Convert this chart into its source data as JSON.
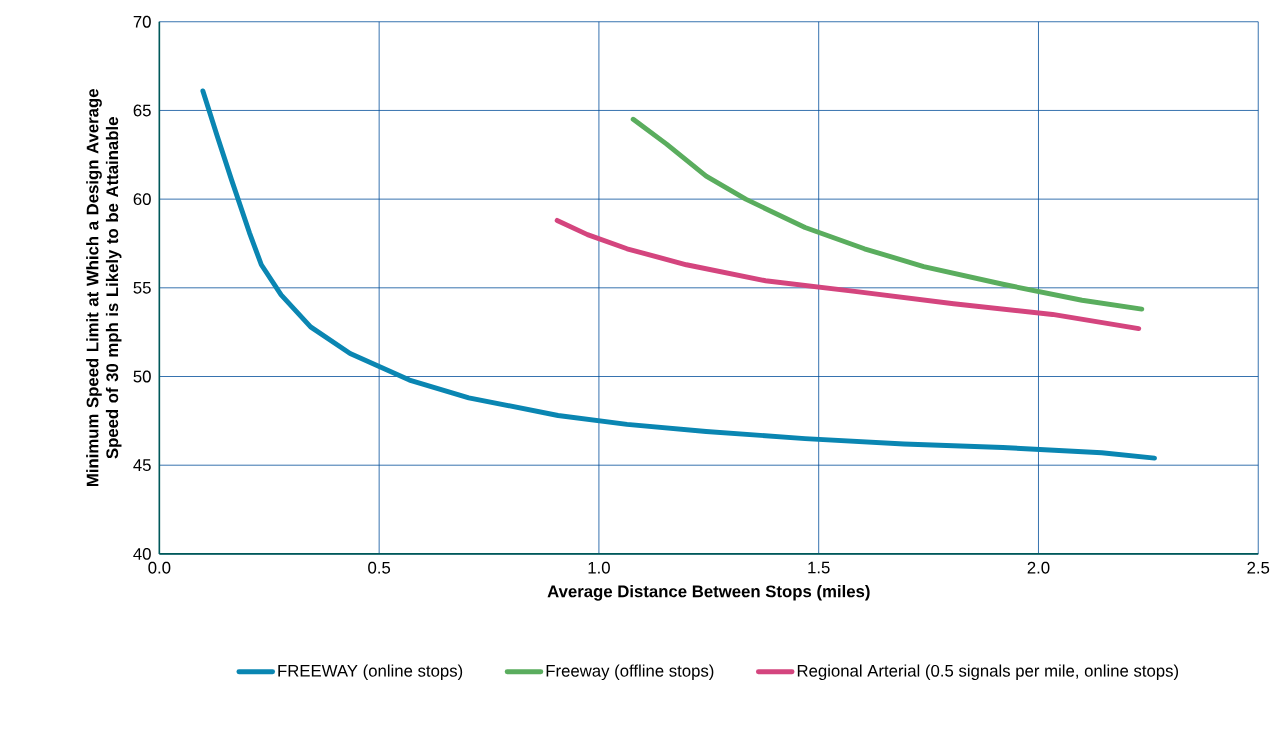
{
  "chart_data": {
    "type": "line",
    "xlabel": "Average Distance Between Stops (miles)",
    "ylabel": "Minimum Speed Limit at Which a Design Average Speed of 30 mph is Likely to be Attainable",
    "xlim": [
      0,
      2.5
    ],
    "xticks": [
      {
        "value": 0,
        "label": "0.0"
      },
      0.5,
      {
        "value": 1,
        "label": "1.0"
      },
      1.5,
      {
        "value": 2,
        "label": "2.0"
      },
      2.5
    ],
    "ylim": [
      40,
      70
    ],
    "yticks": [
      40,
      45,
      50,
      55,
      60,
      65,
      70
    ],
    "grid": true,
    "legend": "bottom",
    "series": [
      {
        "name": "FREEWAY (online stops)",
        "color": "#0a86b2",
        "x": [
          0.099,
          0.131,
          0.164,
          0.205,
          0.232,
          0.277,
          0.344,
          0.434,
          0.569,
          0.704,
          0.907,
          1.064,
          1.244,
          1.469,
          1.694,
          1.919,
          2.144,
          2.264
        ],
        "values": [
          66.1,
          63.6,
          61.1,
          58.1,
          56.3,
          54.6,
          52.8,
          51.3,
          49.8,
          48.8,
          47.8,
          47.3,
          46.9,
          46.5,
          46.2,
          46.0,
          45.7,
          45.4
        ]
      },
      {
        "name": "Freeway (offline stops)",
        "color": "#5aad5e",
        "x": [
          1.078,
          1.154,
          1.244,
          1.334,
          1.469,
          1.604,
          1.739,
          1.919,
          2.099,
          2.235
        ],
        "values": [
          64.5,
          63.1,
          61.3,
          60.0,
          58.4,
          57.2,
          56.2,
          55.2,
          54.3,
          53.8
        ]
      },
      {
        "name": "Regional Arterial (0.5 signals per mile, online stops)",
        "color": "#d4457e",
        "x": [
          0.905,
          0.974,
          1.064,
          1.199,
          1.379,
          1.582,
          1.807,
          2.032,
          2.228
        ],
        "values": [
          58.8,
          58.0,
          57.2,
          56.3,
          55.4,
          54.8,
          54.1,
          53.5,
          52.7
        ]
      }
    ]
  }
}
